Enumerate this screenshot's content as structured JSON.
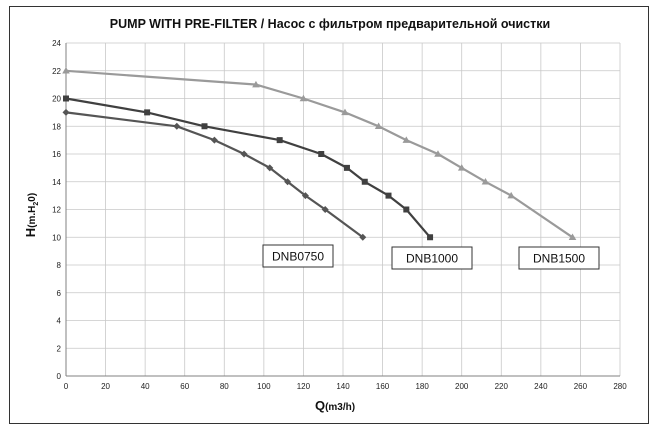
{
  "chart_data": {
    "type": "line",
    "title": "PUMP WITH PRE-FILTER / Насос с фильтром предварительной очистки",
    "xlabel": {
      "main": "Q",
      "sub": "(m3/h)"
    },
    "ylabel": {
      "main": "H",
      "sub_pre": "(m.H",
      "sub_index": "2",
      "sub_post": "0)"
    },
    "xlim": [
      0,
      280
    ],
    "ylim": [
      0,
      24
    ],
    "x_ticks": [
      0,
      20,
      40,
      60,
      80,
      100,
      120,
      140,
      160,
      180,
      200,
      220,
      240,
      260,
      280
    ],
    "y_ticks": [
      0,
      2,
      4,
      6,
      8,
      10,
      12,
      14,
      16,
      18,
      20,
      22,
      24
    ],
    "grid": true,
    "series": [
      {
        "name": "DNB0750",
        "color": "#555555",
        "marker": "diamond",
        "points": [
          [
            0,
            19
          ],
          [
            56,
            18
          ],
          [
            75,
            17
          ],
          [
            90,
            16
          ],
          [
            103,
            15
          ],
          [
            112,
            14
          ],
          [
            121,
            13
          ],
          [
            131,
            12
          ],
          [
            150,
            10
          ]
        ]
      },
      {
        "name": "DNB1000",
        "color": "#404040",
        "marker": "square",
        "points": [
          [
            0,
            20
          ],
          [
            41,
            19
          ],
          [
            70,
            18
          ],
          [
            108,
            17
          ],
          [
            129,
            16
          ],
          [
            142,
            15
          ],
          [
            151,
            14
          ],
          [
            163,
            13
          ],
          [
            172,
            12
          ],
          [
            184,
            10
          ]
        ]
      },
      {
        "name": "DNB1500",
        "color": "#9a9a9a",
        "marker": "triangle",
        "points": [
          [
            0,
            22
          ],
          [
            96,
            21
          ],
          [
            120,
            20
          ],
          [
            141,
            19
          ],
          [
            158,
            18
          ],
          [
            172,
            17
          ],
          [
            188,
            16
          ],
          [
            200,
            15
          ],
          [
            212,
            14
          ],
          [
            225,
            13
          ],
          [
            256,
            10
          ]
        ]
      }
    ]
  }
}
